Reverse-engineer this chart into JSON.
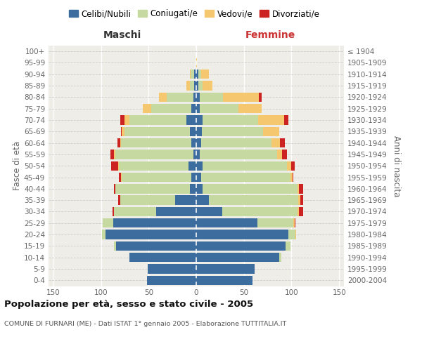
{
  "age_groups": [
    "0-4",
    "5-9",
    "10-14",
    "15-19",
    "20-24",
    "25-29",
    "30-34",
    "35-39",
    "40-44",
    "45-49",
    "50-54",
    "55-59",
    "60-64",
    "65-69",
    "70-74",
    "75-79",
    "80-84",
    "85-89",
    "90-94",
    "95-99",
    "100+"
  ],
  "birth_years": [
    "2000-2004",
    "1995-1999",
    "1990-1994",
    "1985-1989",
    "1980-1984",
    "1975-1979",
    "1970-1974",
    "1965-1969",
    "1960-1964",
    "1955-1959",
    "1950-1954",
    "1945-1949",
    "1940-1944",
    "1935-1939",
    "1930-1934",
    "1925-1929",
    "1920-1924",
    "1915-1919",
    "1910-1914",
    "1905-1909",
    "≤ 1904"
  ],
  "male_celibi": [
    52,
    51,
    70,
    84,
    95,
    87,
    42,
    22,
    7,
    5,
    8,
    3,
    5,
    7,
    10,
    5,
    3,
    2,
    2,
    0,
    0
  ],
  "male_coniugati": [
    0,
    0,
    0,
    2,
    4,
    11,
    44,
    58,
    78,
    73,
    73,
    82,
    74,
    68,
    60,
    42,
    28,
    5,
    4,
    0,
    0
  ],
  "male_vedovi": [
    0,
    0,
    0,
    0,
    0,
    0,
    0,
    0,
    0,
    1,
    1,
    1,
    1,
    3,
    5,
    9,
    8,
    3,
    1,
    0,
    0
  ],
  "male_divorziati": [
    0,
    0,
    0,
    0,
    0,
    0,
    2,
    2,
    1,
    2,
    7,
    4,
    3,
    1,
    5,
    0,
    0,
    0,
    0,
    0,
    0
  ],
  "female_nubili": [
    59,
    61,
    87,
    94,
    97,
    64,
    27,
    13,
    7,
    5,
    7,
    4,
    5,
    6,
    7,
    4,
    4,
    2,
    2,
    0,
    0
  ],
  "female_coniugate": [
    0,
    0,
    2,
    5,
    7,
    38,
    79,
    94,
    99,
    94,
    88,
    81,
    74,
    64,
    58,
    40,
    24,
    5,
    3,
    0,
    0
  ],
  "female_vedove": [
    0,
    0,
    0,
    0,
    1,
    1,
    2,
    2,
    2,
    2,
    5,
    5,
    9,
    17,
    27,
    25,
    38,
    10,
    8,
    1,
    0
  ],
  "female_divorziate": [
    0,
    0,
    0,
    0,
    0,
    1,
    4,
    3,
    4,
    1,
    3,
    5,
    5,
    0,
    5,
    0,
    3,
    0,
    0,
    0,
    0
  ],
  "color_celibi": "#3d6d9e",
  "color_coniugati": "#c5d9a0",
  "color_vedovi": "#f5c76e",
  "color_divorziati": "#cc2222",
  "title": "Popolazione per età, sesso e stato civile - 2005",
  "subtitle": "COMUNE DI FURNARI (ME) - Dati ISTAT 1° gennaio 2005 - Elaborazione TUTTITALIA.IT",
  "label_maschi": "Maschi",
  "label_femmine": "Femmine",
  "label_fasce": "Fasce di età",
  "label_anni": "Anni di nascita",
  "legend_labels": [
    "Celibi/Nubili",
    "Coniugati/e",
    "Vedovi/e",
    "Divorziati/e"
  ],
  "xlim": 155,
  "bg_color": "#eeede8",
  "fig_bg": "#ffffff"
}
